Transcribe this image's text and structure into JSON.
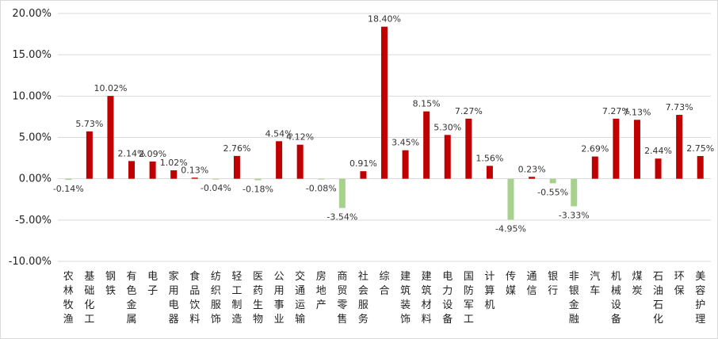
{
  "chart_data": {
    "type": "bar",
    "title": "",
    "xlabel": "",
    "ylabel": "",
    "ylim": [
      -10,
      20
    ],
    "yticks": [
      -10,
      -5,
      0,
      5,
      10,
      15,
      20
    ],
    "ytick_labels": [
      "-10.00%",
      "-5.00%",
      "0.00%",
      "5.00%",
      "10.00%",
      "15.00%",
      "20.00%"
    ],
    "grid": true,
    "colors": {
      "positive": "#c00000",
      "negative": "#a9d18e"
    },
    "categories": [
      "农林牧渔",
      "基础化工",
      "钢铁",
      "有色金属",
      "电子",
      "家用电器",
      "食品饮料",
      "纺织服饰",
      "轻工制造",
      "医药生物",
      "公用事业",
      "交通运输",
      "房地产",
      "商贸零售",
      "社会服务",
      "综合",
      "建筑装饰",
      "建筑材料",
      "电力设备",
      "国防军工",
      "计算机",
      "传媒",
      "通信",
      "银行",
      "非银金融",
      "汽车",
      "机械设备",
      "煤炭",
      "石油石化",
      "环保",
      "美容护理"
    ],
    "values": [
      -0.14,
      5.73,
      10.02,
      2.14,
      2.09,
      1.02,
      0.13,
      -0.04,
      2.76,
      -0.18,
      4.54,
      4.12,
      -0.08,
      -3.54,
      0.91,
      18.4,
      3.45,
      8.15,
      5.3,
      7.27,
      1.56,
      -4.95,
      0.23,
      -0.55,
      -3.33,
      2.69,
      7.27,
      7.13,
      2.44,
      7.73,
      2.75
    ],
    "value_labels": [
      "-0.14%",
      "5.73%",
      "10.02%",
      "2.14%",
      "2.09%",
      "1.02%",
      "0.13%",
      "-0.04%",
      "2.76%",
      "-0.18%",
      "4.54%",
      "4.12%",
      "-0.08%",
      "-3.54%",
      "0.91%",
      "18.40%",
      "3.45%",
      "8.15%",
      "5.30%",
      "7.27%",
      "1.56%",
      "-4.95%",
      "0.23%",
      "-0.55%",
      "-3.33%",
      "2.69%",
      "7.27%",
      "7.13%",
      "2.44%",
      "7.73%",
      "2.75%"
    ]
  }
}
